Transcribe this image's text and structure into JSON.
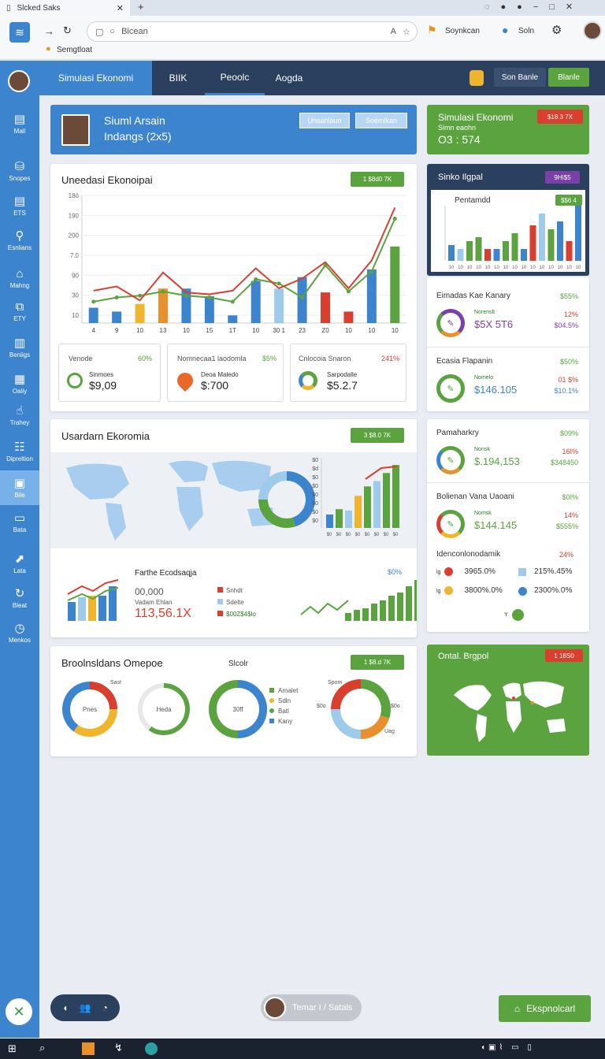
{
  "browser": {
    "tab_title": "Slcked Saks",
    "url": "Bicean",
    "profile_label": "Soynkcan",
    "user_label": "Soln",
    "bookmark": "Semgtloat"
  },
  "sidebar": {
    "items": [
      {
        "icon": "grid",
        "label": "Mall"
      },
      {
        "icon": "layers",
        "label": "Snopes"
      },
      {
        "icon": "document",
        "label": "ETS"
      },
      {
        "icon": "user",
        "label": "Esnlians"
      },
      {
        "icon": "home",
        "label": "Mahng"
      },
      {
        "icon": "copy",
        "label": "ETY"
      },
      {
        "icon": "bar-chart",
        "label": "Beniigs"
      },
      {
        "icon": "table",
        "label": "Oaliy"
      },
      {
        "icon": "pointer",
        "label": "Trahey"
      },
      {
        "icon": "users",
        "label": "Dipreltion"
      },
      {
        "icon": "folder",
        "label": "Bile"
      },
      {
        "icon": "card",
        "label": "Bata"
      },
      {
        "icon": "chart-up",
        "label": "Lata"
      },
      {
        "icon": "refresh",
        "label": "Bleat"
      },
      {
        "icon": "clock",
        "label": "Menkos"
      }
    ]
  },
  "nav": {
    "tabs": [
      "Simulasi Ekonomi",
      "BIIK",
      "Peoolc",
      "Aogda"
    ],
    "btn1": "Son Banle",
    "btn2": "Blanle"
  },
  "header": {
    "line1": "Siuml Arsain",
    "line2": "Indangs (2x5)",
    "btn1": "Unsanlaun",
    "btn2": "Soemlkan"
  },
  "sim": {
    "title": "Simulasi Ekonomi",
    "sub": "Simn eaohn",
    "code": "O3 : 574",
    "badge": "$18.3 7X"
  },
  "econ": {
    "title": "Uneedasi Ekonoipai",
    "badge": "1 $8d0 7K",
    "y_ticks": [
      "18ö",
      "190",
      "200",
      "7.0",
      "90",
      "30",
      "10"
    ],
    "x_ticks": [
      "4",
      "9",
      "10",
      "13",
      "10",
      "15",
      "1T",
      "10",
      "30 1",
      "23",
      "Z0",
      "10",
      "10",
      "10"
    ]
  },
  "stats": [
    {
      "title": "Venode",
      "pct": "60%",
      "sub": "Sinmoes",
      "value": "$9,09"
    },
    {
      "title": "Nomnecaa1 laodomla",
      "pct": "$5%",
      "sub": "Deoa Maledo",
      "value": "$:700"
    },
    {
      "title": "Cnlocoia Snaron",
      "pct": "241%",
      "sub": "Sarpodalle",
      "value": "$5.2.7"
    }
  ],
  "side": {
    "title": "Sinko Ilgpal",
    "badge": "9HI$5",
    "inner": "Pentamdd",
    "inner_badge": "$$6 4"
  },
  "metrics": [
    {
      "title": "Eimadas Kae Kanary",
      "pct": "$55%",
      "sub": "Norenslt",
      "value": "$5X 5T6",
      "pct2": "12%",
      "pct3": "$04.5%"
    },
    {
      "title": "Ecasia Flapanin",
      "pct": "$50%",
      "sub": "Nomelo",
      "value": "$146.105",
      "pct2": "01 $%",
      "pct3": "$10.1%"
    }
  ],
  "map": {
    "title": "Usardarn Ekoromia",
    "badge": "3 $8.0 7K",
    "bar_ticks": [
      "$0",
      "$d",
      "$0",
      "$0",
      "$0",
      "$0",
      "$0",
      "$0"
    ],
    "x_ticks": [
      "$0",
      "$0",
      "$0",
      "$0",
      "$0",
      "$0",
      "$0",
      "$0"
    ]
  },
  "farm": {
    "title": "Farthe Ecodsaqja",
    "pct": "$0%",
    "value_a": "00,000",
    "sub": "Vadam Ehlan",
    "value_b": "113,56.1X",
    "legend": [
      "Snhdt",
      "Sdelte",
      "$00Z$4$lo"
    ]
  },
  "right": {
    "items": [
      {
        "title": "Pamaharkry",
        "pct": "$09%",
        "sub": "Nonsk",
        "value": "$.194,153",
        "pct2": "16I%",
        "pct3": "$348450"
      },
      {
        "title": "Bolienan Vana Uaoani",
        "pct": "$0I%",
        "sub": "Nomsk",
        "value": "$144.145",
        "pct2": "14%",
        "pct3": "$555%"
      }
    ],
    "ident": "Idenconlonodamik",
    "ident_pct": "24%",
    "row1": "3965.0%",
    "row1b": "215%.45%",
    "row2": "3800%.0%",
    "row2b": "2300%.0%",
    "x_label": "Y"
  },
  "bottom": {
    "title": "Broolnsldans Omepoe",
    "sub": "Slcolr",
    "badge": "1 $8.d 7K",
    "d1": "Pnes",
    "d2": "Heda",
    "d3": "30ff",
    "legend": [
      "Arnalet",
      "Sdln",
      "Batl",
      "Kany"
    ],
    "d4_top": "Spom",
    "d4_mid": "$0o",
    "d4_bot": "Uag",
    "dlab": "Sast"
  },
  "global": {
    "title": "Ontal. Brgpol",
    "badge": "1 18S0"
  },
  "footer": {
    "chat": "Temar I / Satals",
    "export": "Ekspnolcarl"
  },
  "colors": {
    "blue": "#3d84cf",
    "navy": "#2b3f5e",
    "green": "#5aa33f",
    "red": "#d93f2f",
    "orange": "#e8902b",
    "yellow": "#f0b52f",
    "purple": "#7b3fa8",
    "lightblue": "#9fcbea"
  },
  "chart_data": [
    {
      "type": "bar",
      "title": "Uneedasi Ekonoipai",
      "x": [
        "4",
        "9",
        "10",
        "13",
        "10",
        "15",
        "1T",
        "10",
        "30 1",
        "23",
        "Z0",
        "10",
        "10",
        "10"
      ],
      "series": [
        {
          "values": [
            20,
            15,
            25,
            45,
            45,
            35,
            10,
            55,
            45,
            60,
            40,
            15,
            70,
            100
          ]
        },
        {
          "values": [
            30,
            50,
            40,
            60,
            40,
            50,
            30,
            80,
            60,
            50,
            90,
            60,
            80,
            180
          ]
        }
      ]
    }
  ]
}
